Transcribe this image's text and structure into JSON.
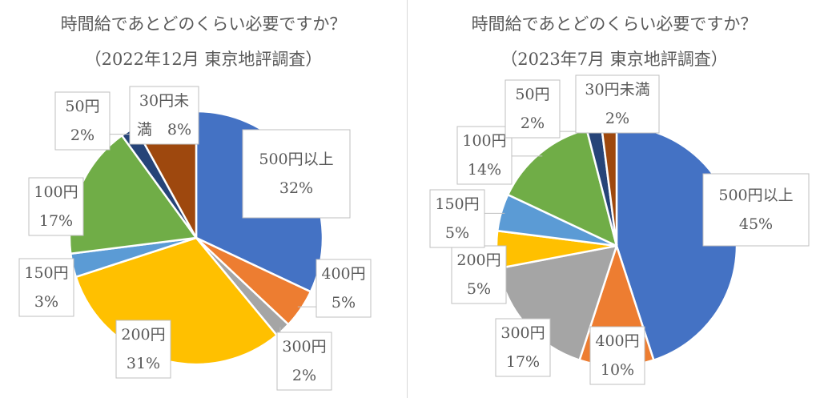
{
  "chart_data": [
    {
      "type": "pie",
      "title": "時間給であとどのくらい必要ですか？",
      "subtitle": "（2022年12月 東京地評調査）",
      "slices": [
        {
          "category": "500円以上",
          "value": 32,
          "label_lines": [
            "500円以上",
            "32%"
          ],
          "color": "#4472C4"
        },
        {
          "category": "400円",
          "value": 5,
          "label_lines": [
            "400円",
            "5%"
          ],
          "color": "#ED7D31"
        },
        {
          "category": "300円",
          "value": 2,
          "label_lines": [
            "300円",
            "2%"
          ],
          "color": "#A5A5A5"
        },
        {
          "category": "200円",
          "value": 31,
          "label_lines": [
            "200円",
            "31%"
          ],
          "color": "#FFC000"
        },
        {
          "category": "150円",
          "value": 3,
          "label_lines": [
            "150円",
            "3%"
          ],
          "color": "#5B9BD5"
        },
        {
          "category": "100円",
          "value": 17,
          "label_lines": [
            "100円",
            "17%"
          ],
          "color": "#70AD47"
        },
        {
          "category": "50円",
          "value": 2,
          "label_lines": [
            "50円",
            "2%"
          ],
          "color": "#264478"
        },
        {
          "category": "30円未満",
          "value": 8,
          "label_lines": [
            "30円未",
            "満　8%"
          ],
          "color": "#9E480E"
        }
      ]
    },
    {
      "type": "pie",
      "title": "時間給であとどのくらい必要ですか？",
      "subtitle": "（2023年7月 東京地評調査）",
      "slices": [
        {
          "category": "500円以上",
          "value": 45,
          "label_lines": [
            "500円以上",
            "45%"
          ],
          "color": "#4472C4"
        },
        {
          "category": "400円",
          "value": 10,
          "label_lines": [
            "400円",
            "10%"
          ],
          "color": "#ED7D31"
        },
        {
          "category": "300円",
          "value": 17,
          "label_lines": [
            "300円",
            "17%"
          ],
          "color": "#A5A5A5"
        },
        {
          "category": "200円",
          "value": 5,
          "label_lines": [
            "200円",
            "5%"
          ],
          "color": "#FFC000"
        },
        {
          "category": "150円",
          "value": 5,
          "label_lines": [
            "150円",
            "5%"
          ],
          "color": "#5B9BD5"
        },
        {
          "category": "100円",
          "value": 14,
          "label_lines": [
            "100円",
            "14%"
          ],
          "color": "#70AD47"
        },
        {
          "category": "50円",
          "value": 2,
          "label_lines": [
            "50円",
            "2%"
          ],
          "color": "#264478"
        },
        {
          "category": "30円未満",
          "value": 2,
          "label_lines": [
            "30円未満",
            "2%"
          ],
          "color": "#9E480E"
        }
      ]
    }
  ]
}
